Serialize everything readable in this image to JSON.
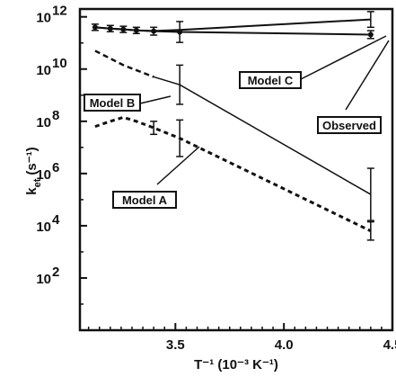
{
  "chart_data": {
    "type": "line",
    "title": "",
    "xlabel": "T⁻¹ (10⁻³ K⁻¹)",
    "ylabel": "k_et (s⁻¹)",
    "ylabel_main": "k",
    "ylabel_sub": "et",
    "ylabel_unit": "(s⁻¹)",
    "xlim": [
      3.06,
      4.5
    ],
    "ylim_log10": [
      0,
      12.3
    ],
    "y_scale": "log",
    "x_ticks": [
      3.5,
      4.0,
      4.5
    ],
    "x_tick_labels": [
      "3.5",
      "4.0",
      "4.5"
    ],
    "y_ticks_log10": [
      12,
      10,
      8,
      6,
      4,
      2
    ],
    "y_tick_labels": [
      {
        "base": "10",
        "exp": "12"
      },
      {
        "base": "10",
        "exp": "10"
      },
      {
        "base": "10",
        "exp": "8"
      },
      {
        "base": "10",
        "exp": "6"
      },
      {
        "base": "10",
        "exp": "4"
      },
      {
        "base": "10",
        "exp": "2"
      }
    ],
    "series": [
      {
        "name": "Observed",
        "style": "solid-markers",
        "x": [
          3.13,
          3.2,
          3.26,
          3.32,
          3.4,
          3.52,
          4.4
        ],
        "y_log10": [
          11.6,
          11.55,
          11.52,
          11.48,
          11.45,
          11.42,
          11.32
        ],
        "err_log10": [
          0.12,
          0.12,
          0.12,
          0.12,
          0.15,
          0.4,
          0.15
        ]
      },
      {
        "name": "Model C",
        "style": "solid",
        "x": [
          3.13,
          3.2,
          3.26,
          3.32,
          3.4,
          3.52,
          4.4
        ],
        "y_log10": [
          11.6,
          11.55,
          11.52,
          11.48,
          11.46,
          11.5,
          11.9
        ],
        "err_log10": [
          0,
          0,
          0,
          0,
          0,
          0,
          0.3
        ]
      },
      {
        "name": "Model B",
        "style": "dashed-to-solid",
        "x": [
          3.13,
          3.26,
          3.4,
          3.52,
          4.4
        ],
        "y_log10": [
          10.7,
          10.15,
          9.7,
          9.4,
          5.2
        ],
        "err_log10": [
          0,
          0,
          0,
          0.75,
          1.0
        ]
      },
      {
        "name": "Model A",
        "style": "dashed",
        "x": [
          3.13,
          3.2,
          3.26,
          3.32,
          3.4,
          3.52,
          4.4
        ],
        "y_log10": [
          7.8,
          8.0,
          8.15,
          8.0,
          7.75,
          7.35,
          3.8
        ],
        "err_log10": [
          0,
          0,
          0,
          0,
          0.25,
          0.7,
          0.35
        ]
      }
    ],
    "annotations": [
      {
        "text": "Model C",
        "target_series": "Model C"
      },
      {
        "text": "Model B",
        "target_series": "Model B"
      },
      {
        "text": "Observed",
        "target_series": "Observed"
      },
      {
        "text": "Model A",
        "target_series": "Model A"
      }
    ],
    "grid": false
  }
}
